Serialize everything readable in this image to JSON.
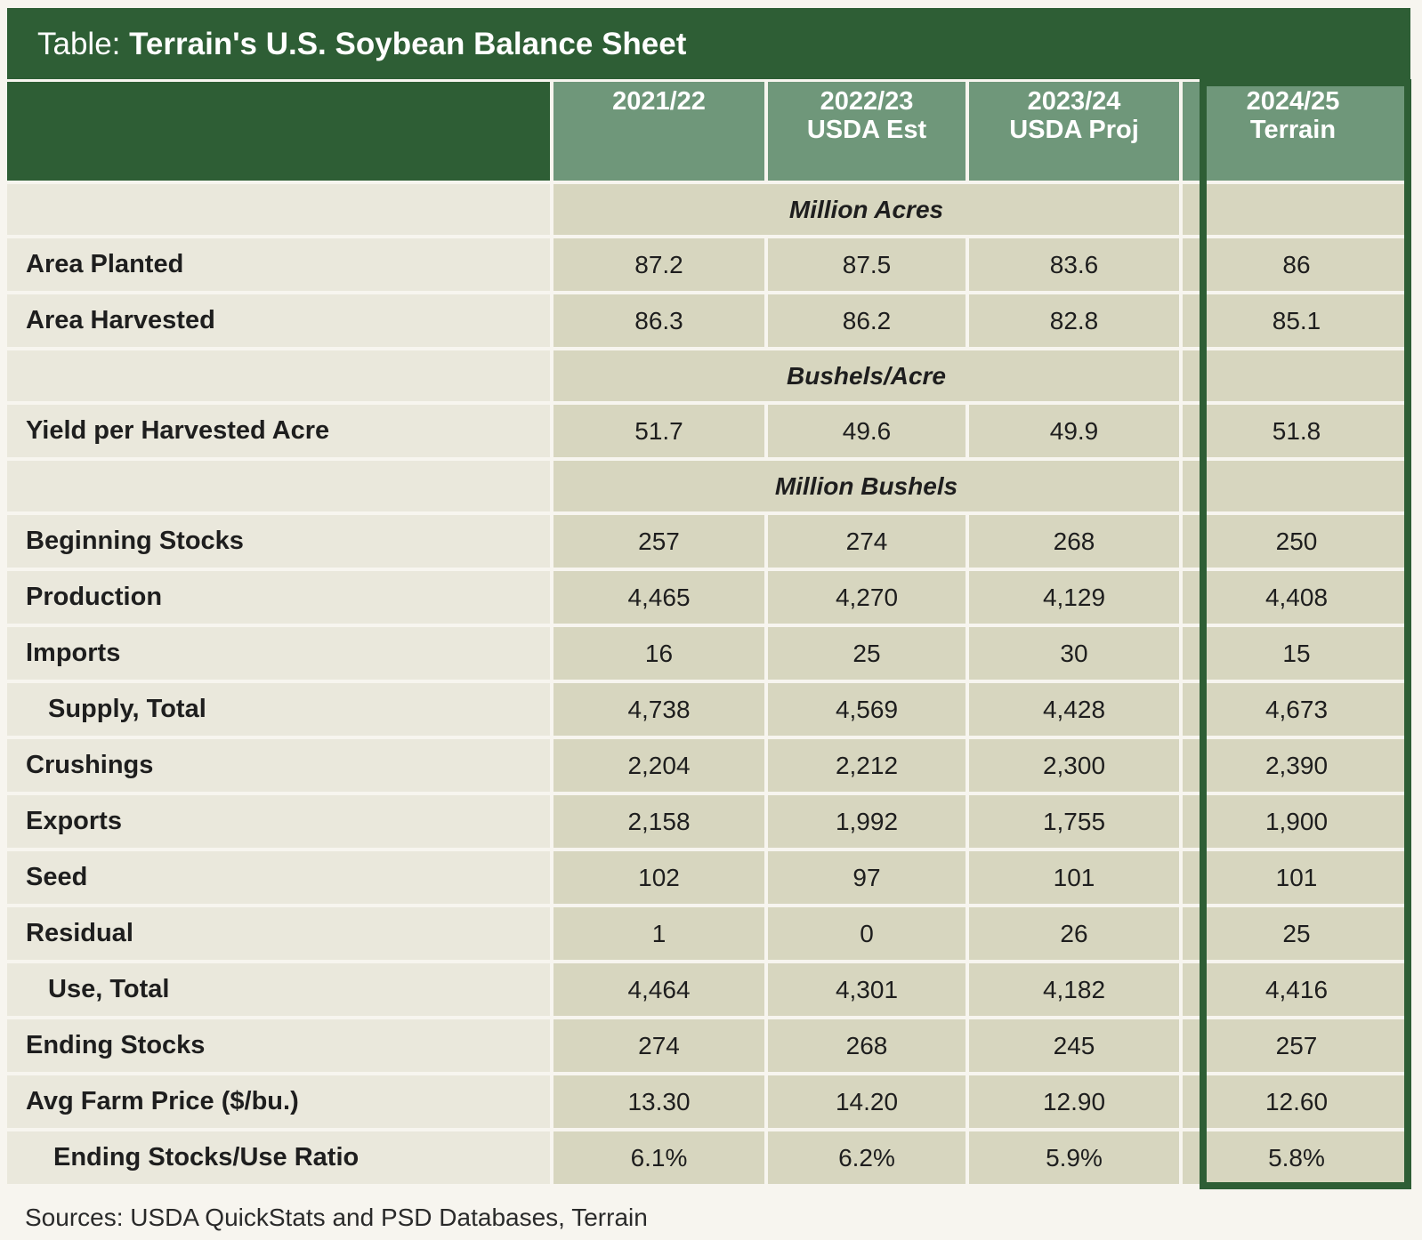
{
  "title": {
    "prefix": "Table:",
    "main": "Terrain's U.S. Soybean Balance Sheet"
  },
  "columns": [
    {
      "line1": "2021/22",
      "line2": ""
    },
    {
      "line1": "2022/23",
      "line2": "USDA Est"
    },
    {
      "line1": "2023/24",
      "line2": "USDA Proj"
    },
    {
      "line1": "2024/25",
      "line2": "Terrain"
    }
  ],
  "sections": {
    "acres": "Million Acres",
    "yield": "Bushels/Acre",
    "bushels": "Million Bushels"
  },
  "rows": {
    "area_planted": {
      "label": "Area Planted",
      "values": [
        "87.2",
        "87.5",
        "83.6",
        "86"
      ]
    },
    "area_harvested": {
      "label": "Area Harvested",
      "values": [
        "86.3",
        "86.2",
        "82.8",
        "85.1"
      ]
    },
    "yield": {
      "label": "Yield per Harvested Acre",
      "values": [
        "51.7",
        "49.6",
        "49.9",
        "51.8"
      ]
    },
    "beginning_stocks": {
      "label": "Beginning Stocks",
      "values": [
        "257",
        "274",
        "268",
        "250"
      ]
    },
    "production": {
      "label": "Production",
      "values": [
        "4,465",
        "4,270",
        "4,129",
        "4,408"
      ]
    },
    "imports": {
      "label": "Imports",
      "values": [
        "16",
        "25",
        "30",
        "15"
      ]
    },
    "supply_total": {
      "label": "Supply, Total",
      "values": [
        "4,738",
        "4,569",
        "4,428",
        "4,673"
      ]
    },
    "crushings": {
      "label": "Crushings",
      "values": [
        "2,204",
        "2,212",
        "2,300",
        "2,390"
      ]
    },
    "exports": {
      "label": "Exports",
      "values": [
        "2,158",
        "1,992",
        "1,755",
        "1,900"
      ]
    },
    "seed": {
      "label": "Seed",
      "values": [
        "102",
        "97",
        "101",
        "101"
      ]
    },
    "residual": {
      "label": "Residual",
      "values": [
        "1",
        "0",
        "26",
        "25"
      ]
    },
    "use_total": {
      "label": "Use, Total",
      "values": [
        "4,464",
        "4,301",
        "4,182",
        "4,416"
      ]
    },
    "ending_stocks": {
      "label": "Ending Stocks",
      "values": [
        "274",
        "268",
        "245",
        "257"
      ]
    },
    "avg_price": {
      "label": "Avg Farm Price ($/bu.)",
      "values": [
        "13.30",
        "14.20",
        "12.90",
        "12.60"
      ]
    },
    "stocks_use_ratio": {
      "label": "Ending Stocks/Use Ratio",
      "values": [
        "6.1%",
        "6.2%",
        "5.9%",
        "5.8%"
      ]
    }
  },
  "source": "Sources: USDA QuickStats and PSD Databases, Terrain",
  "colors": {
    "dark_green": "#2e5e35",
    "header_green": "#6f977a",
    "cell_tan": "#d7d6bf",
    "label_bg": "#eae8dc"
  }
}
